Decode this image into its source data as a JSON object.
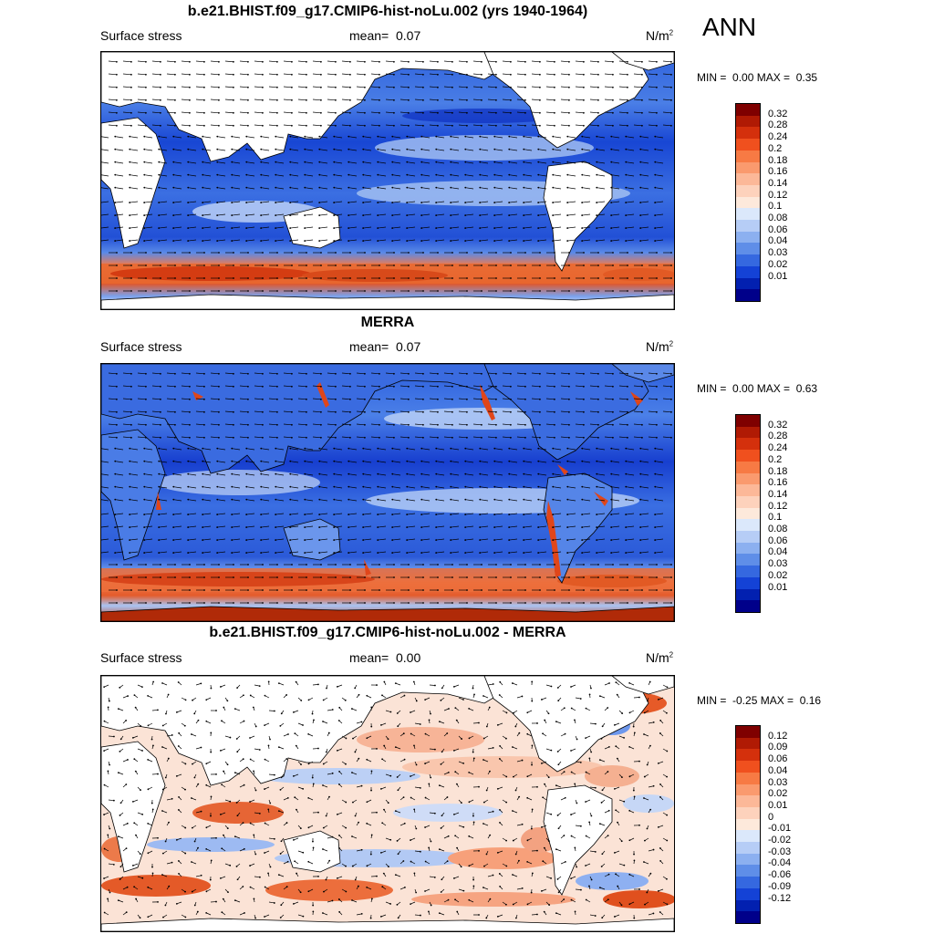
{
  "season": "ANN",
  "panels": [
    {
      "id": "model",
      "title": "b.e21.BHIST.f09_g17.CMIP6-hist-noLu.002 (yrs 1940-1964)",
      "left_label": "Surface stress",
      "mean_label": "mean=",
      "mean_value": "0.07",
      "units": "N/m",
      "units_sup": "2",
      "min_label": "MIN =",
      "min_value": "0.00",
      "max_label": "MAX =",
      "max_value": "0.35",
      "colorbar_labels": [
        "0.32",
        "0.28",
        "0.24",
        "0.2",
        "0.18",
        "0.16",
        "0.14",
        "0.12",
        "0.1",
        "0.08",
        "0.06",
        "0.04",
        "0.03",
        "0.02",
        "0.01"
      ]
    },
    {
      "id": "obs",
      "title": "MERRA",
      "left_label": "Surface stress",
      "mean_label": "mean=",
      "mean_value": "0.07",
      "units": "N/m",
      "units_sup": "2",
      "min_label": "MIN =",
      "min_value": "0.00",
      "max_label": "MAX =",
      "max_value": "0.63",
      "colorbar_labels": [
        "0.32",
        "0.28",
        "0.24",
        "0.2",
        "0.18",
        "0.16",
        "0.14",
        "0.12",
        "0.1",
        "0.08",
        "0.06",
        "0.04",
        "0.03",
        "0.02",
        "0.01"
      ]
    },
    {
      "id": "diff",
      "title": "b.e21.BHIST.f09_g17.CMIP6-hist-noLu.002 - MERRA",
      "left_label": "Surface stress",
      "mean_label": "mean=",
      "mean_value": "0.00",
      "units": "N/m",
      "units_sup": "2",
      "min_label": "MIN =",
      "min_value": "-0.25",
      "max_label": "MAX =",
      "max_value": "0.16",
      "colorbar_labels": [
        "0.12",
        "0.09",
        "0.06",
        "0.04",
        "0.03",
        "0.02",
        "0.01",
        "0",
        "-0.01",
        "-0.02",
        "-0.03",
        "-0.04",
        "-0.06",
        "-0.09",
        "-0.12"
      ]
    }
  ],
  "colors": {
    "colorbar": [
      "#7f0000",
      "#b01a04",
      "#d4300c",
      "#f0501e",
      "#f77a44",
      "#fa9a6e",
      "#fcb898",
      "#fdd2bc",
      "#fde9db",
      "#dbe8fb",
      "#b6cdf6",
      "#8cb0f0",
      "#5f8ee8",
      "#3568e0",
      "#1442d6",
      "#0220b0",
      "#00008a"
    ],
    "land": "#ffffff"
  }
}
